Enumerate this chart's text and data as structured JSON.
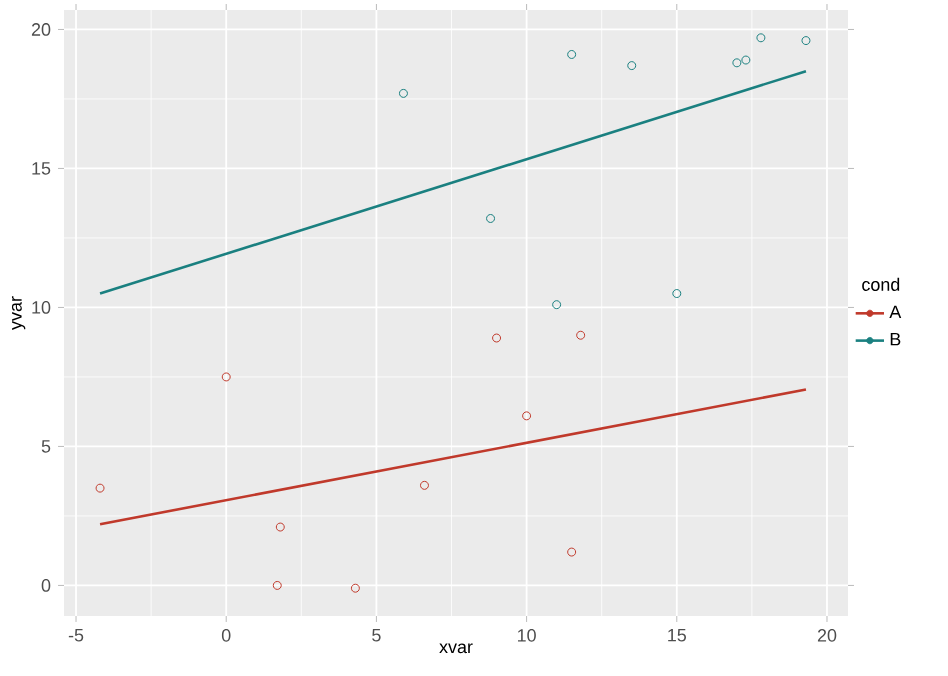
{
  "chart_data": {
    "type": "scatter",
    "xlabel": "xvar",
    "ylabel": "yvar",
    "legend_title": "cond",
    "legend": "right",
    "grid": true,
    "xlim": [
      -5.4,
      20.7
    ],
    "ylim": [
      -1.1,
      20.7
    ],
    "xticks": [
      -5,
      0,
      5,
      10,
      15,
      20
    ],
    "yticks": [
      0,
      5,
      10,
      15,
      20
    ],
    "series": [
      {
        "name": "A",
        "marker": "circle",
        "color": "#c0392b",
        "x": [
          -4.2,
          0,
          1.8,
          1.7,
          4.3,
          6.6,
          9.0,
          11.8,
          10.0,
          11.5
        ],
        "values": [
          3.5,
          7.5,
          2.1,
          0,
          -0.1,
          3.6,
          8.9,
          9.0,
          6.1,
          1.2
        ]
      },
      {
        "name": "B",
        "marker": "circle",
        "color": "#1a8080",
        "x": [
          5.9,
          11.5,
          13.5,
          17.0,
          17.3,
          17.8,
          19.3,
          8.8,
          11.0,
          15.0
        ],
        "values": [
          17.7,
          19.1,
          18.7,
          18.8,
          18.9,
          19.7,
          19.6,
          13.2,
          10.1,
          10.5
        ]
      },
      {
        "type": "line",
        "marker": "none",
        "color": "#c0392b",
        "x": [
          -4.2,
          19.3
        ],
        "values": [
          2.2,
          7.05
        ]
      },
      {
        "type": "line",
        "marker": "none",
        "color": "#1a8080",
        "x": [
          -4.2,
          19.3
        ],
        "values": [
          10.5,
          18.5
        ]
      }
    ]
  }
}
